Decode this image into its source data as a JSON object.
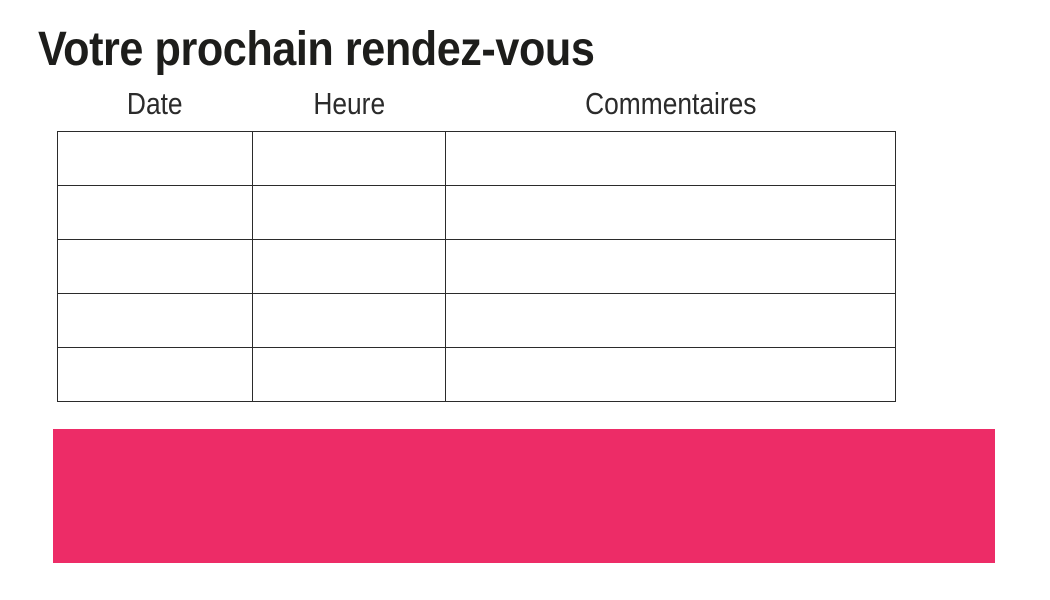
{
  "header": {
    "title": "Votre prochain rendez-vous"
  },
  "table": {
    "column_headers": [
      "Date",
      "Heure",
      "Commentaires"
    ],
    "rows": [
      [
        "",
        "",
        ""
      ],
      [
        "",
        "",
        ""
      ],
      [
        "",
        "",
        ""
      ],
      [
        "",
        "",
        ""
      ],
      [
        "",
        "",
        ""
      ]
    ]
  },
  "banner": {
    "text": ""
  },
  "colors": {
    "accent_pink": "#ED2C67",
    "title_text": "#1d1d1b",
    "header_text": "#2b2b2b",
    "table_border": "#2b2b2b",
    "background": "#ffffff"
  }
}
